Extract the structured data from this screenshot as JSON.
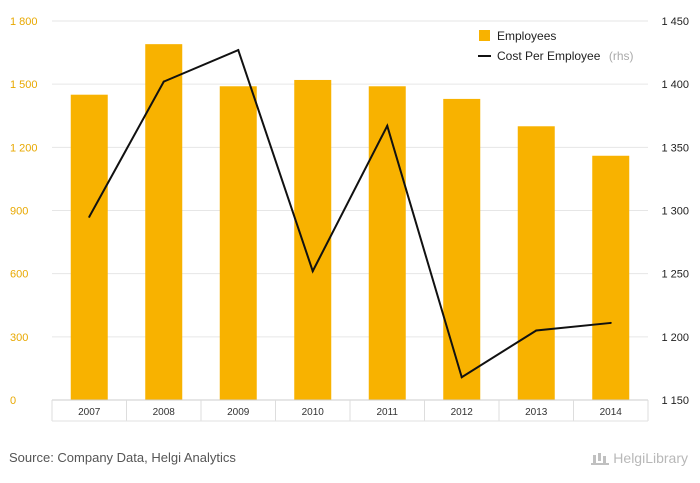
{
  "chart_data": {
    "type": "bar+line",
    "categories": [
      "2007",
      "2008",
      "2009",
      "2010",
      "2011",
      "2012",
      "2013",
      "2014"
    ],
    "series": [
      {
        "name": "Employees",
        "type": "bar",
        "axis": "left",
        "values": [
          1450,
          1690,
          1490,
          1520,
          1490,
          1430,
          1300,
          1160
        ]
      },
      {
        "name": "Cost Per Employee",
        "suffix": "(rhs)",
        "type": "line",
        "axis": "right",
        "values": [
          1295,
          1402,
          1427,
          1252,
          1367,
          1168,
          1205,
          1211
        ]
      }
    ],
    "left_axis": {
      "min": 0,
      "max": 1800,
      "ticks": [
        0,
        300,
        600,
        900,
        1200,
        1500,
        1800
      ],
      "tick_labels": [
        "0",
        "300",
        "600",
        "900",
        "1 200",
        "1 500",
        "1 800"
      ]
    },
    "right_axis": {
      "min": 1150,
      "max": 1450,
      "ticks": [
        1150,
        1200,
        1250,
        1300,
        1350,
        1400,
        1450
      ],
      "tick_labels": [
        "1 150",
        "1 200",
        "1 250",
        "1 300",
        "1 350",
        "1 400",
        "1 450"
      ]
    },
    "legend_position": "top-right",
    "colors": {
      "bar": "#f8b200",
      "line": "#111111",
      "left_ticks": "#e8a800",
      "grid": "#e6e6e6"
    }
  },
  "footer": {
    "source": "Source: Company Data, Helgi Analytics",
    "brand": "HelgiLibrary"
  }
}
